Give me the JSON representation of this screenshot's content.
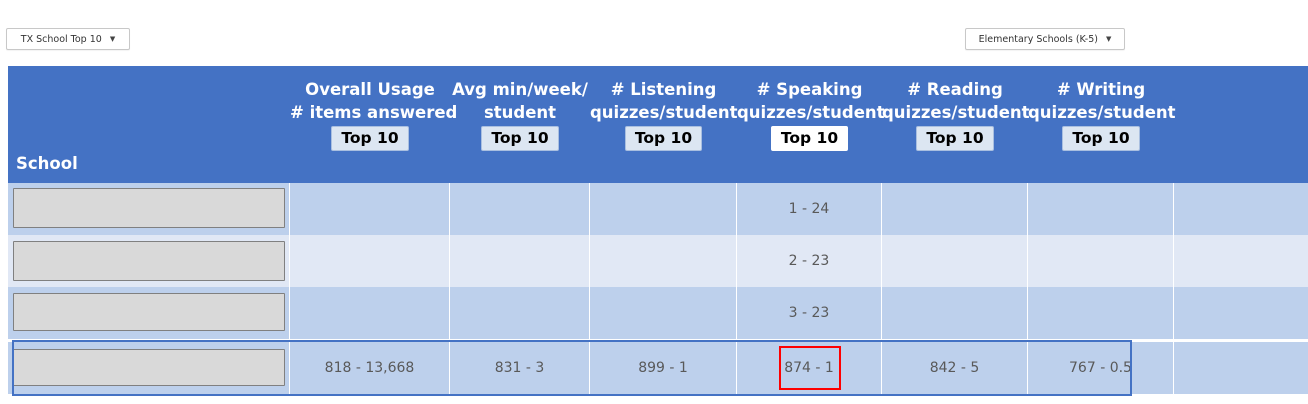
{
  "filters": {
    "left_dropdown": "TX School Top 10",
    "right_dropdown": "Elementary Schools (K-5)"
  },
  "table": {
    "school_header": "School",
    "columns": [
      {
        "line1": "Overall Usage",
        "line2": "# items answered",
        "button": "Top 10",
        "active": false
      },
      {
        "line1": "Avg min/week/",
        "line2": "student",
        "button": "Top 10",
        "active": false
      },
      {
        "line1": "# Listening",
        "line2": "quizzes/student",
        "button": "Top 10",
        "active": false
      },
      {
        "line1": "# Speaking",
        "line2": "quizzes/student",
        "button": "Top 10",
        "active": true
      },
      {
        "line1": "# Reading",
        "line2": "quizzes/student",
        "button": "Top 10",
        "active": false
      },
      {
        "line1": "# Writing",
        "line2": "quizzes/student",
        "button": "Top 10",
        "active": false
      }
    ],
    "rows": [
      {
        "cells": [
          "",
          "",
          "",
          "1 - 24",
          "",
          ""
        ]
      },
      {
        "cells": [
          "",
          "",
          "",
          "2 - 23",
          "",
          ""
        ]
      },
      {
        "cells": [
          "",
          "",
          "",
          "3 - 23",
          "",
          ""
        ]
      },
      {
        "cells": [
          "818 - 13,668",
          "831 - 3",
          "899 - 1",
          "874 - 1",
          "842 - 5",
          "767 - 0.5"
        ]
      }
    ]
  },
  "colors": {
    "header_bg": "#4472c4",
    "row_dark": "#bdd0ec",
    "row_light": "#e1e8f5",
    "highlight": "#ff0000"
  }
}
